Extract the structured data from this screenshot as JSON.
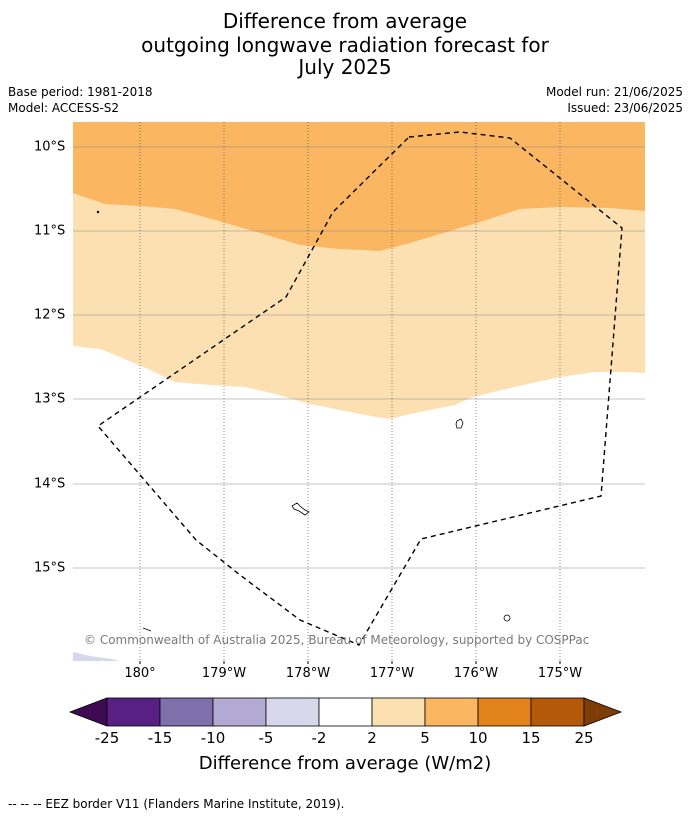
{
  "title": {
    "line1": "Difference from average",
    "line2": "outgoing longwave radiation forecast for",
    "line3": "July 2025"
  },
  "meta": {
    "base_period": "Base period: 1981-2018",
    "model": "Model: ACCESS-S2",
    "model_run": "Model run: 21/06/2025",
    "issued": "Issued: 23/06/2025"
  },
  "map": {
    "lat_labels": [
      "10°S",
      "11°S",
      "12°S",
      "13°S",
      "14°S",
      "15°S"
    ],
    "lon_labels": [
      "180°",
      "179°W",
      "178°W",
      "177°W",
      "176°W",
      "175°W"
    ],
    "copyright": "© Commonwealth of Australia 2025, Bureau of Meteorology, supported by COSPPac",
    "colors": {
      "above_5_10": "#fbb661",
      "range_2_5": "#fde0b2",
      "land": "#ffffff",
      "eez": "#000000"
    }
  },
  "colorbar": {
    "title": "Difference from average (W/m2)",
    "ticks": [
      "-25",
      "-15",
      "-10",
      "-5",
      "-2",
      "2",
      "5",
      "10",
      "15",
      "25"
    ],
    "colors": [
      "#3e0b53",
      "#582083",
      "#7f6fab",
      "#b2aad2",
      "#d7d8eb",
      "#ffffff",
      "#fde0b2",
      "#fbb661",
      "#e2821a",
      "#b45909",
      "#7e3c06"
    ]
  },
  "footer": "--  --  -- EEZ border V11 (Flanders Marine Institute, 2019)."
}
